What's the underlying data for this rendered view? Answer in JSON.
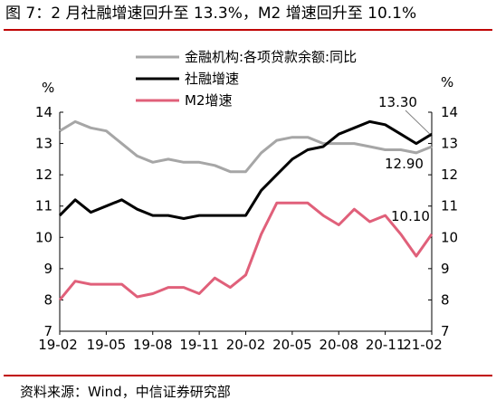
{
  "title": "图 7：2 月社融增速回升至 13.3%，M2 增速回升至 10.1%",
  "source": "资料来源：Wind，中信证券研究部",
  "colors": {
    "gray": "#a6a6a6",
    "black": "#000000",
    "pink": "#e0607a",
    "red_rule": "#c00000"
  },
  "chart_data": {
    "type": "line",
    "x_tick_labels": [
      "19-02",
      "19-05",
      "19-08",
      "19-11",
      "20-02",
      "20-05",
      "20-08",
      "20-11",
      "21-02"
    ],
    "months": [
      "19-02",
      "19-03",
      "19-04",
      "19-05",
      "19-06",
      "19-07",
      "19-08",
      "19-09",
      "19-10",
      "19-11",
      "19-12",
      "20-01",
      "20-02",
      "20-03",
      "20-04",
      "20-05",
      "20-06",
      "20-07",
      "20-08",
      "20-09",
      "20-10",
      "20-11",
      "20-12",
      "21-01",
      "21-02"
    ],
    "ylim": [
      7,
      14
    ],
    "y_ticks": [
      7,
      8,
      9,
      10,
      11,
      12,
      13,
      14
    ],
    "left_axis_unit": "%",
    "right_axis_unit": "%",
    "legend": [
      "金融机构:各项贷款余额:同比",
      "社融增速",
      "M2增速"
    ],
    "legend_placement": "top",
    "grid": false,
    "series": [
      {
        "name": "金融机构:各项贷款余额:同比",
        "color": "#a6a6a6",
        "values": [
          13.4,
          13.7,
          13.5,
          13.4,
          13.0,
          12.6,
          12.4,
          12.5,
          12.4,
          12.4,
          12.3,
          12.1,
          12.1,
          12.7,
          13.1,
          13.2,
          13.2,
          13.0,
          13.0,
          13.0,
          12.9,
          12.8,
          12.8,
          12.7,
          12.9
        ]
      },
      {
        "name": "社融增速",
        "color": "#000000",
        "values": [
          10.7,
          11.2,
          10.8,
          11.0,
          11.2,
          10.9,
          10.7,
          10.7,
          10.6,
          10.7,
          10.7,
          10.7,
          10.7,
          11.5,
          12.0,
          12.5,
          12.8,
          12.9,
          13.3,
          13.5,
          13.7,
          13.6,
          13.3,
          13.0,
          13.3
        ]
      },
      {
        "name": "M2增速",
        "color": "#e0607a",
        "values": [
          8.0,
          8.6,
          8.5,
          8.5,
          8.5,
          8.1,
          8.2,
          8.4,
          8.4,
          8.2,
          8.7,
          8.4,
          8.8,
          10.1,
          11.1,
          11.1,
          11.1,
          10.7,
          10.4,
          10.9,
          10.5,
          10.7,
          10.1,
          9.4,
          10.1
        ]
      }
    ],
    "annotations": [
      "13.30",
      "12.90",
      "10.10"
    ]
  }
}
